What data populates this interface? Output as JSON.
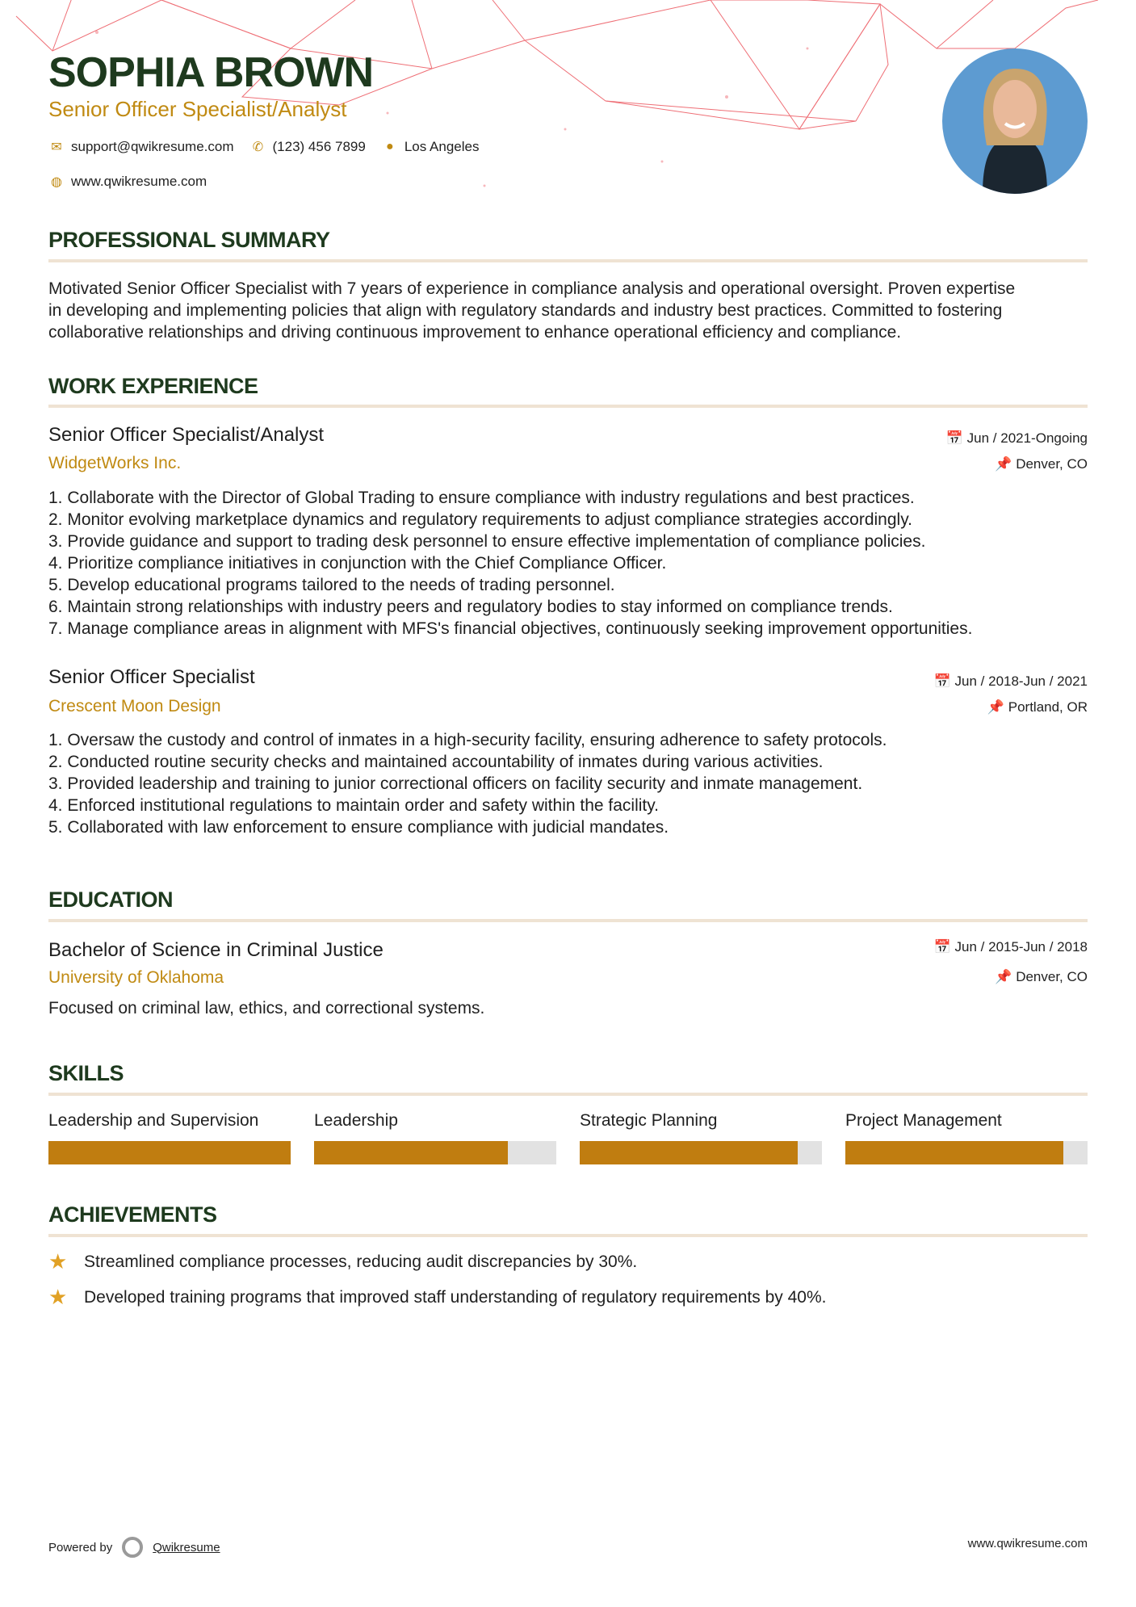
{
  "header": {
    "name": "SOPHIA BROWN",
    "title": "Senior Officer Specialist/Analyst",
    "email": "support@qwikresume.com",
    "phone": "(123) 456 7899",
    "location": "Los Angeles",
    "website": "www.qwikresume.com"
  },
  "colors": {
    "accent": "#c08a12",
    "heading": "#1e3a1e",
    "bar": "#c07d10"
  },
  "summary": {
    "heading": "PROFESSIONAL SUMMARY",
    "lines": [
      "Motivated Senior Officer Specialist with 7 years of experience in compliance analysis and operational oversight. Proven expertise",
      "in developing and implementing policies that align with regulatory standards and industry best practices. Committed to fostering",
      "collaborative relationships and driving continuous improvement to enhance operational efficiency and compliance."
    ]
  },
  "experience": {
    "heading": "WORK EXPERIENCE",
    "jobs": [
      {
        "title": "Senior Officer Specialist/Analyst",
        "company": "WidgetWorks Inc.",
        "dates": "Jun / 2021-Ongoing",
        "location": "Denver, CO",
        "bullets": [
          "1. Collaborate with the Director of Global Trading to ensure compliance with industry regulations and best practices.",
          "2. Monitor evolving marketplace dynamics and regulatory requirements to adjust compliance strategies accordingly.",
          "3. Provide guidance and support to trading desk personnel to ensure effective implementation of compliance policies.",
          "4. Prioritize compliance initiatives in conjunction with the Chief Compliance Officer.",
          "5. Develop educational programs tailored to the needs of trading personnel.",
          "6. Maintain strong relationships with industry peers and regulatory bodies to stay informed on compliance trends.",
          "7. Manage compliance areas in alignment with MFS's financial objectives, continuously seeking improvement opportunities."
        ]
      },
      {
        "title": "Senior Officer Specialist",
        "company": "Crescent Moon Design",
        "dates": "Jun / 2018-Jun / 2021",
        "location": "Portland, OR",
        "bullets": [
          "1. Oversaw the custody and control of inmates in a high-security facility, ensuring adherence to safety protocols.",
          "2. Conducted routine security checks and maintained accountability of inmates during various activities.",
          "3. Provided leadership and training to junior correctional officers on facility security and inmate management.",
          "4. Enforced institutional regulations to maintain order and safety within the facility.",
          "5. Collaborated with law enforcement to ensure compliance with judicial mandates."
        ]
      }
    ]
  },
  "education": {
    "heading": "EDUCATION",
    "degree": "Bachelor of Science in Criminal Justice",
    "school": "University of Oklahoma",
    "dates": "Jun / 2015-Jun / 2018",
    "location": "Denver, CO",
    "description": "Focused on criminal law, ethics, and correctional systems."
  },
  "skills": {
    "heading": "SKILLS",
    "items": [
      {
        "name": "Leadership and Supervision",
        "level": 100
      },
      {
        "name": "Leadership",
        "level": 80
      },
      {
        "name": "Strategic Planning",
        "level": 90
      },
      {
        "name": "Project Management",
        "level": 90
      }
    ]
  },
  "achievements": {
    "heading": "ACHIEVEMENTS",
    "items": [
      "Streamlined compliance processes, reducing audit discrepancies by 30%.",
      "Developed training programs that improved staff understanding of regulatory requirements by 40%."
    ]
  },
  "footer": {
    "powered_by": "Powered by",
    "brand": "Qwikresume",
    "website": "www.qwikresume.com"
  }
}
